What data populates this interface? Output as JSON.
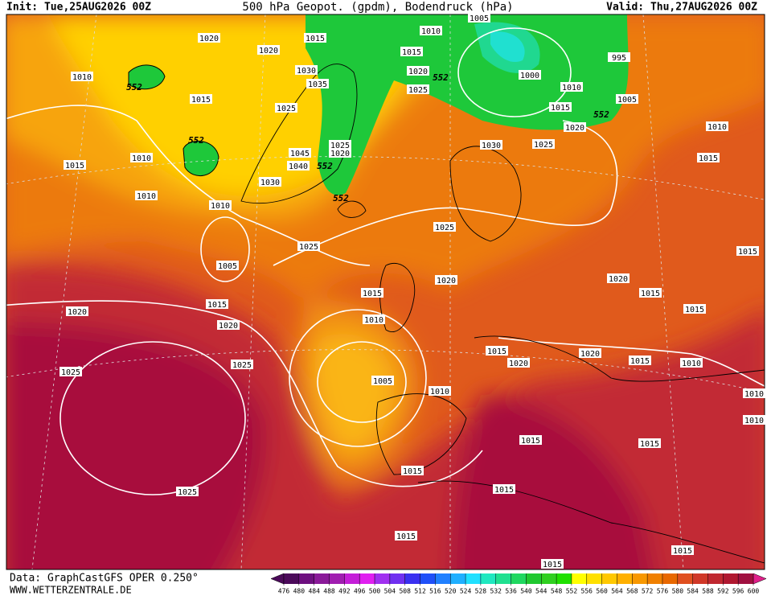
{
  "header": {
    "init": "Init: Tue,25AUG2026 00Z",
    "title": "500 hPa Geopot. (gpdm), Bodendruck (hPa)",
    "valid": "Valid: Thu,27AUG2026 00Z"
  },
  "footer": {
    "data": "Data: GraphCastGFS OPER 0.250°",
    "site": "WWW.WETTERZENTRALE.DE"
  },
  "colorbar": {
    "ticks": [
      476,
      480,
      484,
      488,
      492,
      496,
      500,
      504,
      508,
      512,
      516,
      520,
      524,
      528,
      532,
      536,
      540,
      544,
      548,
      552,
      556,
      560,
      564,
      568,
      572,
      576,
      580,
      584,
      588,
      592,
      596,
      600
    ],
    "colors": [
      "#4b0a5a",
      "#6e1080",
      "#8a1a99",
      "#a01eb0",
      "#c41ed8",
      "#e020f0",
      "#a030f0",
      "#7030f0",
      "#3a30f0",
      "#2050f8",
      "#2080ff",
      "#20b0ff",
      "#20e0ff",
      "#20e8c0",
      "#20e090",
      "#20d860",
      "#20c830",
      "#30d020",
      "#20e000",
      "#ffff00",
      "#ffe000",
      "#ffc800",
      "#ffb000",
      "#f89800",
      "#f08000",
      "#e86800",
      "#e05020",
      "#d03828",
      "#c02830",
      "#b01830",
      "#a01040"
    ]
  },
  "isobar_labels": [
    "1010",
    "1020",
    "1020",
    "1015",
    "1010",
    "1005",
    "1015",
    "1020",
    "1030",
    "1035",
    "1025",
    "995",
    "1000",
    "1010",
    "1015",
    "1005",
    "1020",
    "1010",
    "1015",
    "1025",
    "1010",
    "1015",
    "1010",
    "1010",
    "1030",
    "1025",
    "1015",
    "1025",
    "1020",
    "1045",
    "1040",
    "1030",
    "1025",
    "1005",
    "1025",
    "1020",
    "1020",
    "1015",
    "1015",
    "1015",
    "1015",
    "1010",
    "1020",
    "1020",
    "1015",
    "1020",
    "1020",
    "1015",
    "1010",
    "1025",
    "1025",
    "1005",
    "1010",
    "1015",
    "1010",
    "1010",
    "1015",
    "1015",
    "1015",
    "1015",
    "1025",
    "1015",
    "1015",
    "1015"
  ],
  "geopotential_labels": [
    "552",
    "552",
    "552",
    "552",
    "552",
    "552"
  ]
}
